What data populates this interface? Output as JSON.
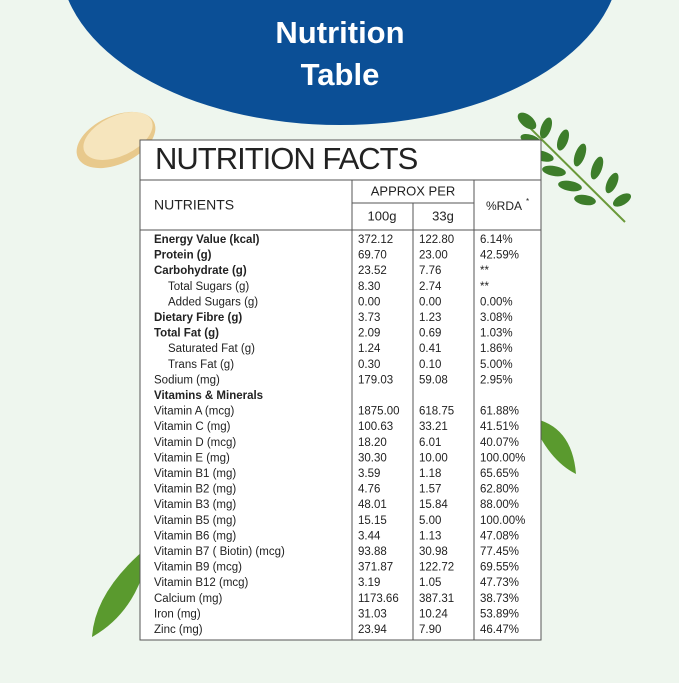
{
  "header": {
    "title_lines": [
      "Nutrition",
      "Table"
    ]
  },
  "table": {
    "heading": "NUTRITION FACTS",
    "columns": {
      "nutrients": "NUTRIENTS",
      "approx_per": "APPROX PER",
      "per_100g": "100g",
      "per_serving": "33g",
      "rda": "%RDA",
      "rda_mark": "*"
    },
    "rows": [
      {
        "cells": [
          "Energy Value (kcal)",
          "372.12",
          "122.80",
          "6.14%"
        ],
        "style": "bold"
      },
      {
        "cells": [
          "Protein (g)",
          "69.70",
          "23.00",
          "42.59%"
        ],
        "style": "bold"
      },
      {
        "cells": [
          "Carbohydrate (g)",
          "23.52",
          "7.76",
          "**"
        ],
        "style": "bold"
      },
      {
        "cells": [
          "Total Sugars (g)",
          "8.30",
          "2.74",
          "**"
        ],
        "style": "indent"
      },
      {
        "cells": [
          "Added Sugars (g)",
          "0.00",
          "0.00",
          "0.00%"
        ],
        "style": "indent"
      },
      {
        "cells": [
          "Dietary Fibre (g)",
          "3.73",
          "1.23",
          "3.08%"
        ],
        "style": "bold"
      },
      {
        "cells": [
          "Total Fat (g)",
          "2.09",
          "0.69",
          "1.03%"
        ],
        "style": "bold"
      },
      {
        "cells": [
          "Saturated Fat (g)",
          "1.24",
          "0.41",
          "1.86%"
        ],
        "style": "indent"
      },
      {
        "cells": [
          "Trans Fat (g)",
          "0.30",
          "0.10",
          "5.00%"
        ],
        "style": "indent"
      },
      {
        "cells": [
          "Sodium (mg)",
          "179.03",
          "59.08",
          "2.95%"
        ],
        "style": "normal"
      },
      {
        "cells": [
          "Vitamins & Minerals"
        ],
        "style": "bold"
      },
      {
        "cells": [
          "Vitamin A (mcg)",
          "1875.00",
          "618.75",
          "61.88%"
        ],
        "style": "normal"
      },
      {
        "cells": [
          "Vitamin C (mg)",
          "100.63",
          "33.21",
          "41.51%"
        ],
        "style": "normal"
      },
      {
        "cells": [
          "Vitamin D (mcg)",
          "18.20",
          "6.01",
          "40.07%"
        ],
        "style": "normal"
      },
      {
        "cells": [
          "Vitamin E (mg)",
          "30.30",
          "10.00",
          "100.00%"
        ],
        "style": "normal"
      },
      {
        "cells": [
          "Vitamin B1 (mg)",
          "3.59",
          "1.18",
          "65.65%"
        ],
        "style": "normal"
      },
      {
        "cells": [
          "Vitamin B2 (mg)",
          "4.76",
          "1.57",
          "62.80%"
        ],
        "style": "normal"
      },
      {
        "cells": [
          "Vitamin B3 (mg)",
          "48.01",
          "15.84",
          "88.00%"
        ],
        "style": "normal"
      },
      {
        "cells": [
          "Vitamin B5 (mg)",
          "15.15",
          "5.00",
          "100.00%"
        ],
        "style": "normal"
      },
      {
        "cells": [
          "Vitamin B6 (mg)",
          "3.44",
          "1.13",
          "47.08%"
        ],
        "style": "normal"
      },
      {
        "cells": [
          "Vitamin B7 ( Biotin) (mcg)",
          "93.88",
          "30.98",
          "77.45%"
        ],
        "style": "normal"
      },
      {
        "cells": [
          "Vitamin B9 (mcg)",
          "371.87",
          "122.72",
          "69.55%"
        ],
        "style": "normal"
      },
      {
        "cells": [
          "Vitamin B12 (mcg)",
          "3.19",
          "1.05",
          "47.73%"
        ],
        "style": "normal"
      },
      {
        "cells": [
          "Calcium (mg)",
          "1173.66",
          "387.31",
          "38.73%"
        ],
        "style": "normal"
      },
      {
        "cells": [
          "Iron (mg)",
          "31.03",
          "10.24",
          "53.89%"
        ],
        "style": "normal"
      },
      {
        "cells": [
          "Zinc (mg)",
          "23.94",
          "7.90",
          "46.47%"
        ],
        "style": "normal"
      }
    ]
  }
}
